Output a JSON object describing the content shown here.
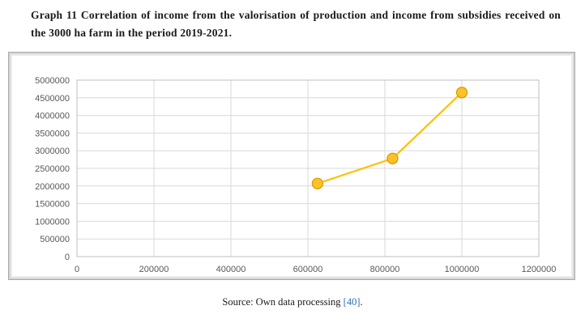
{
  "title": "Graph 11 Correlation of income from the valorisation of production and income from subsidies received on the 3000 ha farm in the period 2019-2021.",
  "source": {
    "prefix": "Source: Own data processing ",
    "citation": "[40]",
    "suffix": "."
  },
  "chart_data": {
    "type": "scatter",
    "title": "",
    "xlabel": "",
    "ylabel": "",
    "x": [
      625000,
      820000,
      1000000
    ],
    "y": [
      2070000,
      2780000,
      4650000
    ],
    "xlim": [
      0,
      1200000
    ],
    "ylim": [
      0,
      5000000
    ],
    "x_ticks": [
      0,
      200000,
      400000,
      600000,
      800000,
      1000000,
      1200000
    ],
    "y_ticks": [
      0,
      500000,
      1000000,
      1500000,
      2000000,
      2500000,
      3000000,
      3500000,
      4000000,
      4500000,
      5000000
    ],
    "grid": true,
    "legend": "none",
    "line_color": "#ffc000",
    "marker_fill": "#ffc226",
    "marker_stroke": "#d89c00",
    "grid_color": "#d9d9d9",
    "plot_border_color": "#bfbfbf"
  }
}
